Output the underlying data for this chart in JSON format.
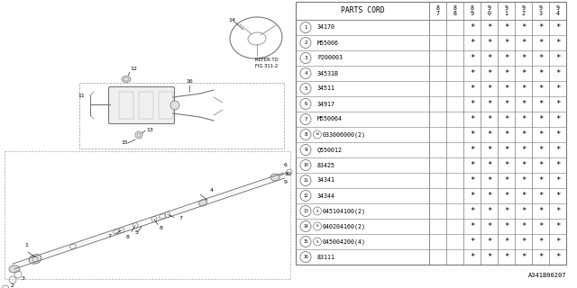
{
  "bg_color": "#ffffff",
  "table_header_years": [
    "87",
    "88",
    "89",
    "90",
    "91",
    "92",
    "93",
    "94"
  ],
  "rows": [
    {
      "num": "1",
      "prefix": "",
      "part": "34170",
      "stars": [
        false,
        false,
        true,
        true,
        true,
        true,
        true,
        true
      ]
    },
    {
      "num": "2",
      "prefix": "",
      "part": "M55006",
      "stars": [
        false,
        false,
        true,
        true,
        true,
        true,
        true,
        true
      ]
    },
    {
      "num": "3",
      "prefix": "",
      "part": "P200003",
      "stars": [
        false,
        false,
        true,
        true,
        true,
        true,
        true,
        true
      ]
    },
    {
      "num": "4",
      "prefix": "",
      "part": "34531B",
      "stars": [
        false,
        false,
        true,
        true,
        true,
        true,
        true,
        true
      ]
    },
    {
      "num": "5",
      "prefix": "",
      "part": "34511",
      "stars": [
        false,
        false,
        true,
        true,
        true,
        true,
        true,
        true
      ]
    },
    {
      "num": "6",
      "prefix": "",
      "part": "34917",
      "stars": [
        false,
        false,
        true,
        true,
        true,
        true,
        true,
        true
      ]
    },
    {
      "num": "7",
      "prefix": "",
      "part": "M550064",
      "stars": [
        false,
        false,
        true,
        true,
        true,
        true,
        true,
        true
      ]
    },
    {
      "num": "8",
      "prefix": "W",
      "part": "033006000(2)",
      "stars": [
        false,
        false,
        true,
        true,
        true,
        true,
        true,
        true
      ]
    },
    {
      "num": "9",
      "prefix": "",
      "part": "Q550012",
      "stars": [
        false,
        false,
        true,
        true,
        true,
        true,
        true,
        true
      ]
    },
    {
      "num": "10",
      "prefix": "",
      "part": "83425",
      "stars": [
        false,
        false,
        true,
        true,
        true,
        true,
        true,
        true
      ]
    },
    {
      "num": "11",
      "prefix": "",
      "part": "34341",
      "stars": [
        false,
        false,
        true,
        true,
        true,
        true,
        true,
        true
      ]
    },
    {
      "num": "12",
      "prefix": "",
      "part": "34344",
      "stars": [
        false,
        false,
        true,
        true,
        true,
        true,
        true,
        true
      ]
    },
    {
      "num": "13",
      "prefix": "S",
      "part": "045104100(2)",
      "stars": [
        false,
        false,
        true,
        true,
        true,
        true,
        true,
        true
      ]
    },
    {
      "num": "14",
      "prefix": "S",
      "part": "040204160(2)",
      "stars": [
        false,
        false,
        true,
        true,
        true,
        true,
        true,
        true
      ]
    },
    {
      "num": "15",
      "prefix": "S",
      "part": "045004200(4)",
      "stars": [
        false,
        false,
        true,
        true,
        true,
        true,
        true,
        true
      ]
    },
    {
      "num": "16",
      "prefix": "",
      "part": "83111",
      "stars": [
        false,
        false,
        true,
        true,
        true,
        true,
        true,
        true
      ]
    }
  ],
  "footer": "A341B00207",
  "line_color": "#777777",
  "text_color": "#000000"
}
